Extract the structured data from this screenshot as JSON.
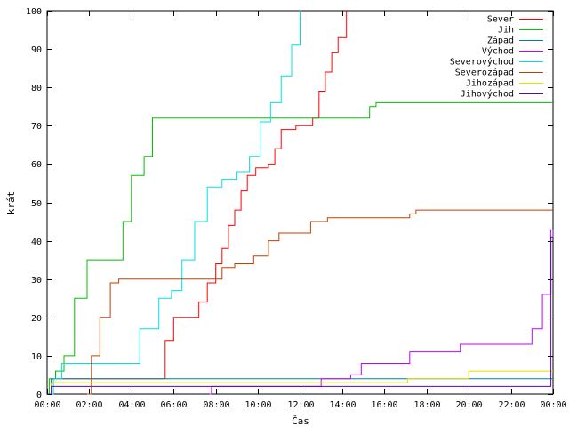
{
  "chart_data": {
    "type": "line",
    "xlabel": "Čas",
    "ylabel": "krát",
    "ylim": [
      0,
      100
    ],
    "y_ticks": [
      0,
      10,
      20,
      30,
      40,
      50,
      60,
      70,
      80,
      90,
      100
    ],
    "xlim": [
      0,
      24
    ],
    "x_ticks": [
      0,
      2,
      4,
      6,
      8,
      10,
      12,
      14,
      16,
      18,
      20,
      22,
      24
    ],
    "x_tick_labels": [
      "00:00",
      "02:00",
      "04:00",
      "06:00",
      "08:00",
      "10:00",
      "12:00",
      "14:00",
      "16:00",
      "18:00",
      "20:00",
      "22:00",
      "00:00"
    ],
    "grid": false,
    "legend_position": "top-right",
    "series": [
      {
        "name": "Sever",
        "color": "#ff0000",
        "points": [
          [
            0,
            0
          ],
          [
            0.2,
            4
          ],
          [
            5.4,
            4
          ],
          [
            5.6,
            14
          ],
          [
            6.0,
            20
          ],
          [
            6.7,
            20
          ],
          [
            7.2,
            24
          ],
          [
            7.6,
            29
          ],
          [
            8.0,
            34
          ],
          [
            8.3,
            38
          ],
          [
            8.6,
            44
          ],
          [
            8.9,
            48
          ],
          [
            9.2,
            53
          ],
          [
            9.5,
            57
          ],
          [
            9.9,
            59
          ],
          [
            10.5,
            60
          ],
          [
            10.8,
            64
          ],
          [
            11.1,
            69
          ],
          [
            11.8,
            70
          ],
          [
            12.6,
            72
          ],
          [
            12.9,
            79
          ],
          [
            13.2,
            84
          ],
          [
            13.5,
            89
          ],
          [
            13.8,
            93
          ],
          [
            14.2,
            100
          ]
        ]
      },
      {
        "name": "Jih",
        "color": "#00c000",
        "points": [
          [
            0,
            0
          ],
          [
            0.1,
            4
          ],
          [
            0.4,
            6
          ],
          [
            0.8,
            10
          ],
          [
            1.3,
            25
          ],
          [
            1.9,
            35
          ],
          [
            3.2,
            35
          ],
          [
            3.6,
            45
          ],
          [
            4.0,
            57
          ],
          [
            4.6,
            62
          ],
          [
            5.0,
            72
          ],
          [
            15.0,
            72
          ],
          [
            15.3,
            75
          ],
          [
            15.6,
            76
          ],
          [
            24,
            76
          ]
        ]
      },
      {
        "name": "Západ",
        "color": "#0080a0",
        "points": [
          [
            0,
            0
          ],
          [
            0.2,
            4
          ],
          [
            19.9,
            4
          ],
          [
            20.0,
            4
          ],
          [
            24,
            4
          ]
        ]
      },
      {
        "name": "Východ",
        "color": "#c000ff",
        "points": [
          [
            7.7,
            0
          ],
          [
            7.8,
            2
          ],
          [
            9.2,
            2
          ],
          [
            12.9,
            2
          ],
          [
            13.0,
            4
          ],
          [
            14.4,
            5
          ],
          [
            14.9,
            8
          ],
          [
            16.7,
            8
          ],
          [
            17.2,
            11
          ],
          [
            18.9,
            11
          ],
          [
            19.6,
            13
          ],
          [
            22.6,
            13
          ],
          [
            23.0,
            17
          ],
          [
            23.5,
            26
          ],
          [
            23.9,
            43
          ]
        ]
      },
      {
        "name": "Severovýchod",
        "color": "#00e0e0",
        "points": [
          [
            0,
            0
          ],
          [
            0.3,
            4
          ],
          [
            0.7,
            8
          ],
          [
            4.1,
            8
          ],
          [
            4.4,
            17
          ],
          [
            4.8,
            17
          ],
          [
            5.3,
            25
          ],
          [
            5.9,
            27
          ],
          [
            6.4,
            35
          ],
          [
            7.0,
            45
          ],
          [
            7.6,
            54
          ],
          [
            8.3,
            56
          ],
          [
            9.0,
            58
          ],
          [
            9.6,
            62
          ],
          [
            10.1,
            71
          ],
          [
            10.6,
            76
          ],
          [
            11.1,
            83
          ],
          [
            11.6,
            91
          ],
          [
            12.0,
            100
          ]
        ]
      },
      {
        "name": "Severozápad",
        "color": "#c04000",
        "points": [
          [
            1.9,
            0
          ],
          [
            2.1,
            10
          ],
          [
            2.5,
            20
          ],
          [
            3.0,
            29
          ],
          [
            3.4,
            30
          ],
          [
            7.5,
            30
          ],
          [
            8.3,
            33
          ],
          [
            8.9,
            34
          ],
          [
            9.8,
            36
          ],
          [
            10.5,
            40
          ],
          [
            11.0,
            42
          ],
          [
            12.5,
            45
          ],
          [
            13.3,
            46
          ],
          [
            17.2,
            47
          ],
          [
            17.5,
            48
          ],
          [
            24,
            48
          ]
        ]
      },
      {
        "name": "Jihozápad",
        "color": "#e0e000",
        "points": [
          [
            0,
            0
          ],
          [
            0.2,
            3
          ],
          [
            9.3,
            3
          ],
          [
            17.1,
            4
          ],
          [
            20.0,
            6
          ],
          [
            24,
            6
          ]
        ]
      },
      {
        "name": "Jihovýchod",
        "color": "#6000c0",
        "points": [
          [
            0,
            0
          ],
          [
            0.2,
            2
          ],
          [
            23.9,
            41
          ],
          [
            24,
            43
          ]
        ]
      }
    ]
  }
}
